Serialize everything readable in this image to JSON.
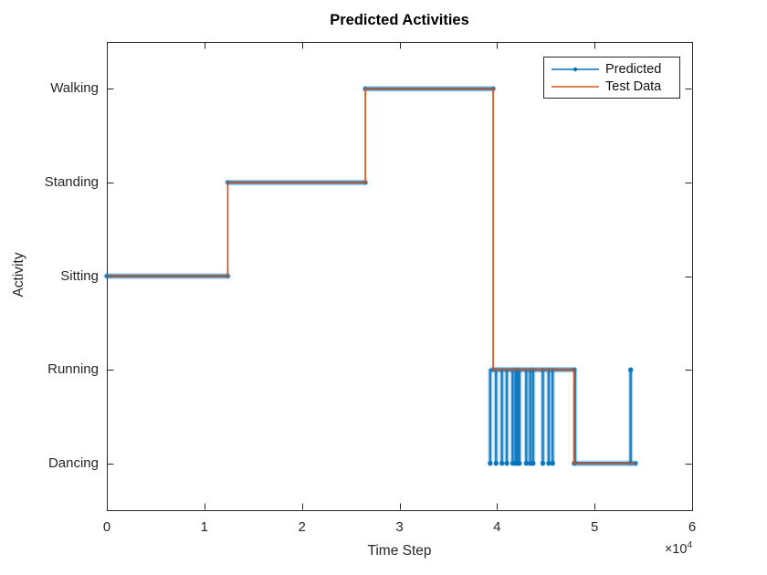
{
  "window": {
    "background": "#ffffff"
  },
  "chart_data": {
    "type": "line",
    "title": "Predicted Activities",
    "xlabel": "Time Step",
    "ylabel": "Activity",
    "x_exponent": {
      "base": "×10",
      "power": "4"
    },
    "y_categories": [
      "Dancing",
      "Running",
      "Sitting",
      "Standing",
      "Walking"
    ],
    "x_ticks": [
      "0",
      "1",
      "2",
      "3",
      "4",
      "5",
      "6"
    ],
    "xlim": [
      0,
      6
    ],
    "axis_color": "#262626",
    "grid": false,
    "legend": {
      "position": "top-right",
      "entries": [
        "Predicted",
        "Test Data"
      ]
    },
    "series": [
      {
        "name": "Predicted",
        "color": "#0072BD",
        "style": "thick-line-with-dot-markers",
        "segments": [
          {
            "activity": "Sitting",
            "start": 0,
            "end": 1.24
          },
          {
            "activity": "Standing",
            "start": 1.24,
            "end": 2.65
          },
          {
            "activity": "Walking",
            "start": 2.65,
            "end": 3.96
          },
          {
            "activity": "Running",
            "start": 3.96,
            "end": 4.79
          },
          {
            "activity": "Dancing",
            "start": 4.79,
            "end": 5.42
          }
        ],
        "verticals": [
          {
            "time": 3.93,
            "from": "Running",
            "to": "Dancing",
            "marker": true
          },
          {
            "time": 3.99,
            "from": "Running",
            "to": "Dancing",
            "marker": true
          },
          {
            "time": 4.05,
            "from": "Running",
            "to": "Dancing",
            "marker": true
          },
          {
            "time": 4.1,
            "from": "Running",
            "to": "Dancing",
            "marker": true
          },
          {
            "time": 4.16,
            "from": "Running",
            "to": "Dancing",
            "marker": true
          },
          {
            "time": 4.19,
            "from": "Running",
            "to": "Dancing",
            "marker": true
          },
          {
            "time": 4.21,
            "from": "Running",
            "to": "Dancing",
            "marker": true
          },
          {
            "time": 4.23,
            "from": "Running",
            "to": "Dancing",
            "marker": true
          },
          {
            "time": 4.3,
            "from": "Running",
            "to": "Dancing",
            "marker": true
          },
          {
            "time": 4.34,
            "from": "Running",
            "to": "Dancing",
            "marker": true
          },
          {
            "time": 4.37,
            "from": "Running",
            "to": "Dancing",
            "marker": true
          },
          {
            "time": 4.47,
            "from": "Running",
            "to": "Dancing",
            "marker": true
          },
          {
            "time": 4.53,
            "from": "Running",
            "to": "Dancing",
            "marker": true
          },
          {
            "time": 4.57,
            "from": "Running",
            "to": "Dancing",
            "marker": true
          },
          {
            "time": 4.8,
            "from": "Running",
            "to": "Dancing",
            "marker": false
          },
          {
            "time": 5.37,
            "from": "Dancing",
            "to": "Running",
            "marker": true
          }
        ]
      },
      {
        "name": "Test Data",
        "color": "#D95319",
        "style": "thin-line",
        "segments": [
          {
            "activity": "Sitting",
            "start": 0,
            "end": 1.24
          },
          {
            "activity": "Standing",
            "start": 1.24,
            "end": 2.65
          },
          {
            "activity": "Walking",
            "start": 2.65,
            "end": 3.96
          },
          {
            "activity": "Running",
            "start": 3.96,
            "end": 4.79
          },
          {
            "activity": "Dancing",
            "start": 4.79,
            "end": 5.42
          }
        ]
      }
    ]
  }
}
